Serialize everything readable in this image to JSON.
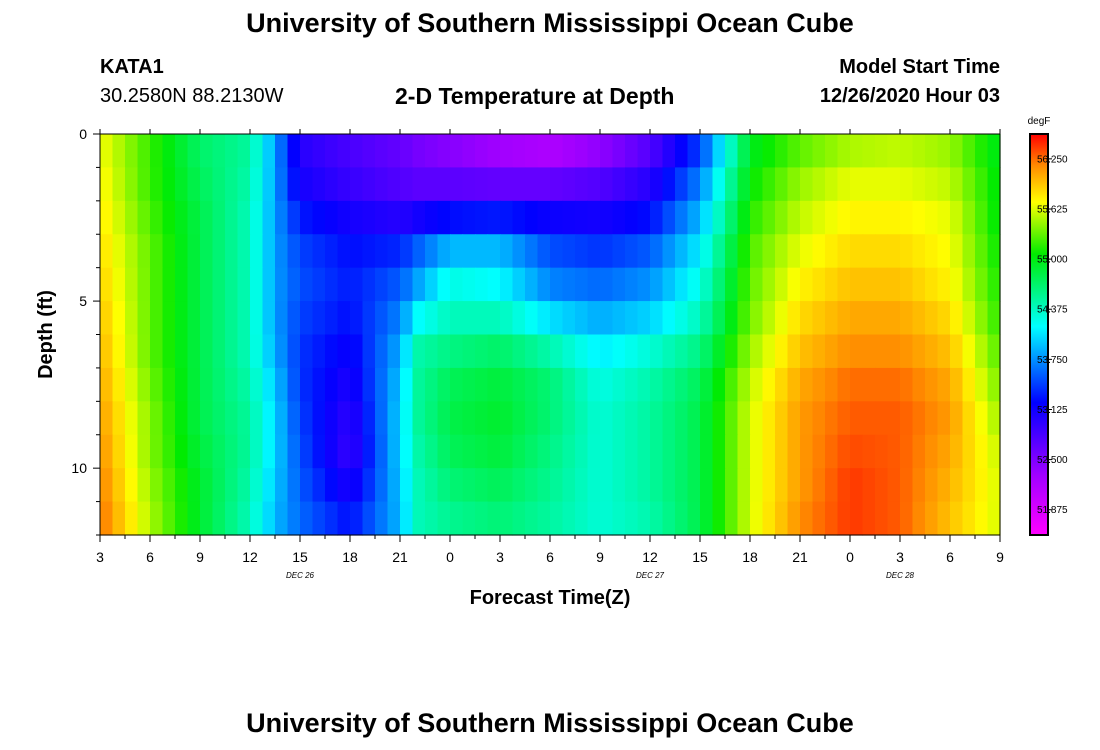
{
  "header": {
    "title": "University of Southern Mississippi Ocean Cube",
    "station_id": "KATA1",
    "coords": "30.2580N 88.2130W",
    "plot_title": "2-D Temperature at Depth",
    "model_label": "Model Start Time",
    "model_time": "12/26/2020 Hour 03"
  },
  "footer": {
    "title": "University of Southern Mississippi Ocean Cube"
  },
  "chart_data": {
    "type": "heatmap",
    "title": "2-D Temperature at Depth",
    "xlabel": "Forecast Time(Z)",
    "ylabel": "Depth (ft)",
    "x_tick_labels": [
      "3",
      "6",
      "9",
      "12",
      "15",
      "18",
      "21",
      "0",
      "3",
      "6",
      "9",
      "12",
      "15",
      "18",
      "21",
      "0",
      "3",
      "6",
      "9"
    ],
    "x_date_labels": [
      {
        "label": "DEC 26",
        "at_tick": 4
      },
      {
        "label": "DEC 27",
        "at_tick": 11
      },
      {
        "label": "DEC 28",
        "at_tick": 16
      }
    ],
    "x_range_hours": [
      0,
      54
    ],
    "y_tick_labels": [
      "0",
      "5",
      "10"
    ],
    "y_tick_values": [
      0,
      5,
      10
    ],
    "ylim": [
      0,
      12
    ],
    "y_inverted": true,
    "colorbar": {
      "unit": "degF",
      "labels": [
        "56.250",
        "55.625",
        "55.000",
        "54.375",
        "53.750",
        "53.125",
        "52.500",
        "51.875"
      ],
      "vmin": 51.56,
      "vmax": 56.56
    },
    "x_hours": [
      0,
      3,
      6,
      9,
      10.5,
      12,
      15,
      18,
      19,
      21,
      24,
      27,
      30,
      33,
      36,
      39,
      42,
      45,
      48,
      51,
      54
    ],
    "depth_ft": [
      0,
      1,
      2,
      3,
      4,
      5,
      6,
      7,
      8,
      9,
      10,
      11,
      12
    ],
    "values": [
      [
        55.7,
        55.2,
        54.7,
        54.5,
        53.8,
        53.0,
        52.8,
        52.6,
        52.5,
        52.4,
        52.2,
        52.0,
        52.2,
        52.6,
        53.3,
        54.9,
        55.2,
        55.4,
        55.5,
        55.4,
        54.9
      ],
      [
        55.7,
        55.2,
        54.7,
        54.5,
        53.8,
        53.0,
        52.8,
        52.7,
        52.6,
        52.5,
        52.4,
        52.4,
        52.6,
        52.9,
        53.6,
        55.0,
        55.4,
        55.6,
        55.6,
        55.5,
        55.0
      ],
      [
        55.8,
        55.2,
        54.8,
        54.4,
        53.8,
        53.2,
        53.0,
        52.8,
        52.8,
        52.9,
        52.9,
        52.9,
        52.9,
        53.1,
        53.8,
        55.1,
        55.5,
        55.7,
        55.7,
        55.6,
        55.0
      ],
      [
        55.8,
        55.3,
        54.8,
        54.4,
        53.8,
        53.4,
        53.2,
        53.2,
        53.4,
        53.6,
        53.7,
        53.4,
        53.3,
        53.4,
        54.0,
        55.2,
        55.6,
        55.8,
        55.8,
        55.7,
        55.0
      ],
      [
        55.9,
        55.3,
        54.8,
        54.4,
        53.8,
        53.5,
        53.3,
        53.5,
        53.7,
        54.2,
        54.1,
        53.6,
        53.5,
        53.7,
        54.2,
        55.3,
        55.7,
        55.9,
        55.9,
        55.7,
        55.1
      ],
      [
        55.9,
        55.3,
        54.8,
        54.4,
        53.8,
        53.5,
        53.3,
        53.6,
        53.9,
        54.3,
        54.2,
        53.8,
        53.7,
        53.8,
        54.3,
        55.3,
        55.8,
        56.0,
        56.0,
        55.8,
        55.1
      ],
      [
        56.0,
        55.3,
        54.8,
        54.4,
        53.8,
        53.4,
        53.2,
        53.8,
        54.4,
        54.5,
        54.6,
        54.3,
        54.0,
        54.2,
        54.5,
        55.4,
        55.9,
        56.1,
        56.1,
        55.9,
        55.2
      ],
      [
        56.0,
        55.3,
        54.8,
        54.4,
        53.9,
        53.4,
        53.1,
        53.9,
        54.5,
        54.7,
        54.8,
        54.6,
        54.2,
        54.4,
        54.7,
        55.5,
        56.0,
        56.2,
        56.2,
        56.0,
        55.3
      ],
      [
        56.1,
        55.4,
        54.8,
        54.5,
        54.0,
        53.4,
        53.0,
        54.0,
        54.5,
        54.8,
        54.9,
        54.7,
        54.3,
        54.5,
        54.8,
        55.6,
        56.1,
        56.3,
        56.3,
        56.1,
        55.4
      ],
      [
        56.1,
        55.4,
        54.8,
        54.5,
        54.0,
        53.5,
        52.9,
        54.0,
        54.5,
        54.8,
        54.9,
        54.6,
        54.3,
        54.5,
        54.8,
        55.6,
        56.1,
        56.3,
        56.3,
        56.1,
        55.5
      ],
      [
        56.2,
        55.4,
        54.9,
        54.5,
        54.0,
        53.5,
        52.9,
        54.0,
        54.4,
        54.7,
        54.8,
        54.6,
        54.3,
        54.5,
        54.8,
        55.6,
        56.1,
        56.4,
        56.3,
        56.0,
        55.6
      ],
      [
        56.2,
        55.5,
        54.9,
        54.4,
        53.9,
        53.6,
        53.2,
        53.9,
        54.4,
        54.6,
        54.7,
        54.5,
        54.3,
        54.5,
        54.8,
        55.6,
        56.1,
        56.4,
        56.3,
        56.0,
        55.6
      ],
      [
        56.3,
        55.5,
        54.9,
        54.4,
        53.9,
        53.6,
        53.3,
        53.9,
        54.4,
        54.5,
        54.6,
        54.5,
        54.3,
        54.4,
        54.8,
        55.6,
        56.2,
        56.4,
        56.3,
        55.9,
        55.6
      ]
    ]
  }
}
